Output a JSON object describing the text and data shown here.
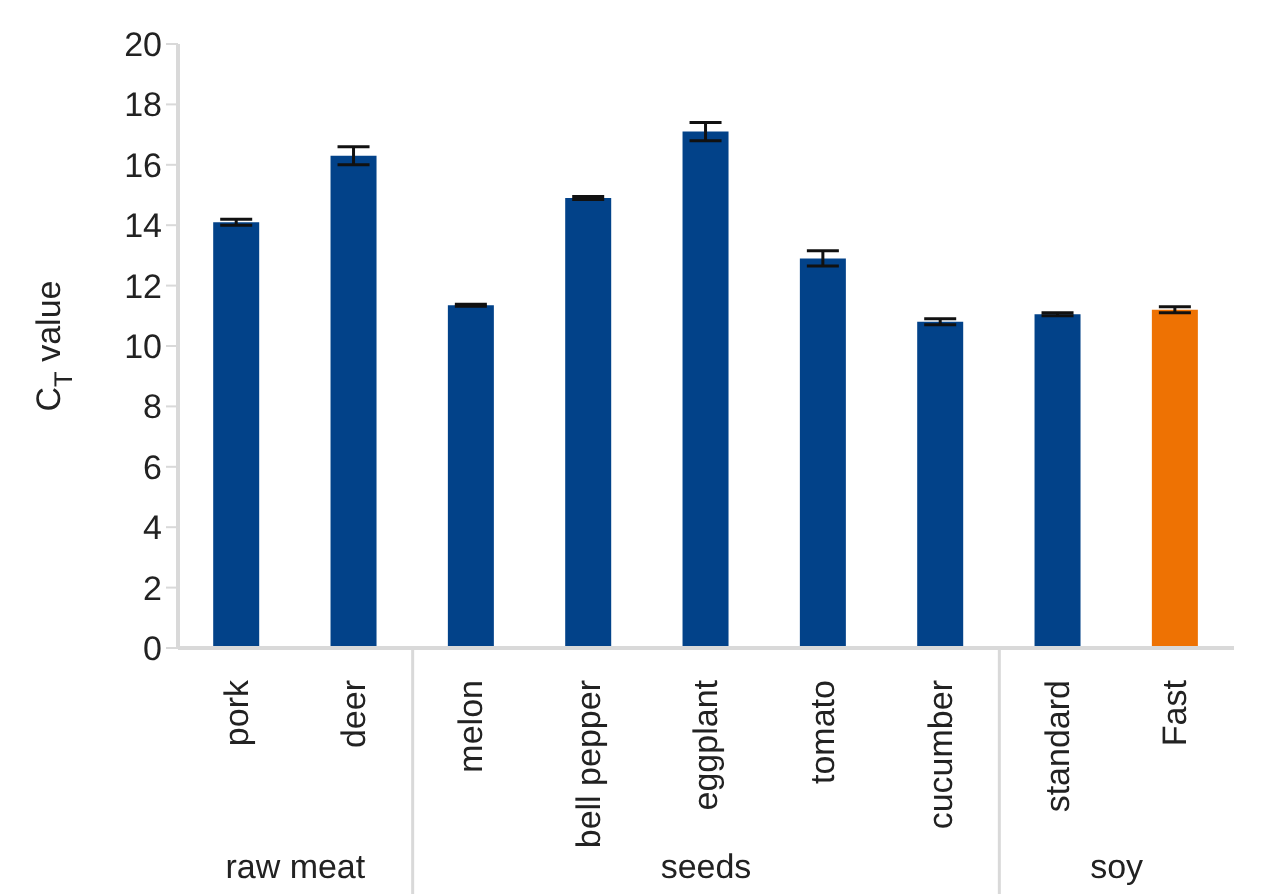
{
  "chart_data": {
    "type": "bar",
    "ylabel": "C$_{T}$ value",
    "categories": [
      "pork",
      "deer",
      "melon",
      "bell pepper",
      "eggplant",
      "tomato",
      "cucumber",
      "standard",
      "Fast"
    ],
    "values": [
      14.1,
      16.3,
      11.35,
      14.9,
      17.1,
      12.9,
      10.8,
      11.05,
      11.2
    ],
    "errors": [
      0.1,
      0.3,
      0.03,
      0.05,
      0.3,
      0.25,
      0.1,
      0.05,
      0.1
    ],
    "colors": [
      "#024289",
      "#024289",
      "#024289",
      "#024289",
      "#024289",
      "#024289",
      "#024289",
      "#024289",
      "#ee7203"
    ],
    "ylim": [
      0,
      20
    ],
    "yticks": [
      0,
      2,
      4,
      6,
      8,
      10,
      12,
      14,
      16,
      18,
      20
    ],
    "grid": false,
    "annotations": [
      "raw meat",
      "seeds",
      "soy"
    ]
  }
}
